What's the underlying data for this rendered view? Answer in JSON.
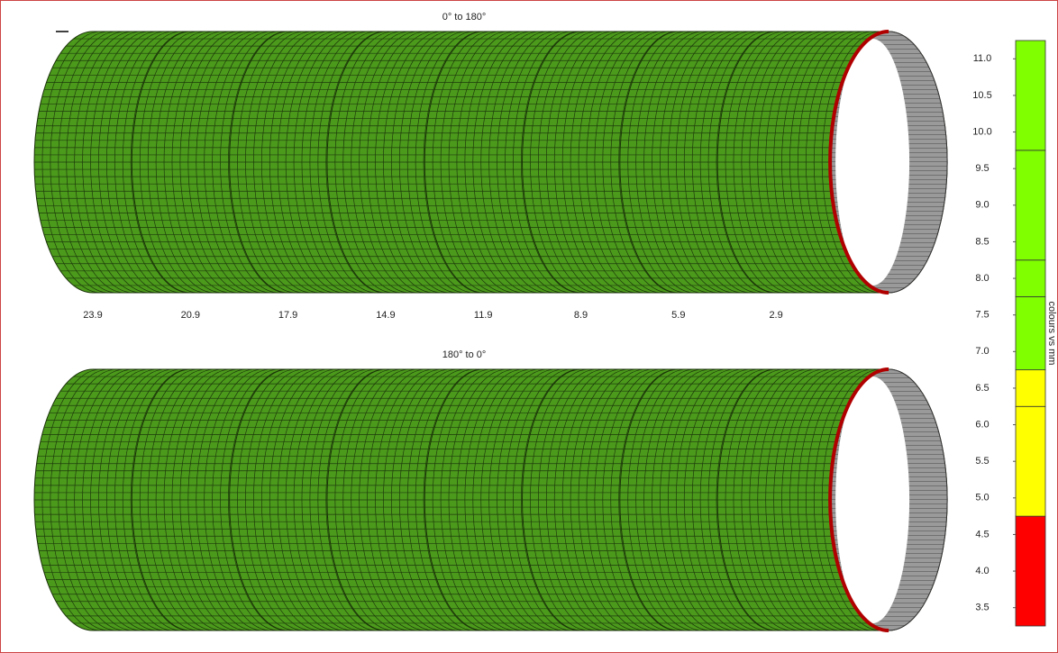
{
  "chart_data": {
    "type": "pipe-rings",
    "panels": [
      {
        "title": "0° to 180°",
        "ring_labels": [
          "23.9",
          "20.9",
          "17.9",
          "14.9",
          "11.9",
          "8.9",
          "5.9",
          "2.9"
        ]
      },
      {
        "title": "180° to 0°",
        "ring_labels": [
          null,
          null,
          null,
          null,
          null,
          null,
          null,
          null
        ]
      }
    ],
    "body_color": "#4c9a1c",
    "colorbar": {
      "label": "colours vs mm",
      "ylim": [
        3.25,
        11.25
      ],
      "yticks": [
        3.5,
        {
          "value": 4,
          "label": "4.0"
        },
        4.5,
        {
          "value": 5,
          "label": "5.0"
        },
        5.5,
        {
          "value": 6,
          "label": "6.0"
        },
        6.5,
        {
          "value": 7,
          "label": "7.0"
        },
        7.5,
        {
          "value": 8,
          "label": "8.0"
        },
        8.5,
        {
          "value": 9,
          "label": "9.0"
        },
        9.5,
        {
          "value": 10,
          "label": "10.0"
        },
        10.5,
        {
          "value": 11,
          "label": "11.0"
        }
      ],
      "bins": [
        3.25,
        4.75,
        6.25,
        6.75,
        7.75,
        8.25,
        9.75,
        11.25
      ],
      "colors": [
        "#ff0000",
        "#ffff00",
        "#ffff00",
        "#80ff00",
        "#80ff00",
        "#80ff00",
        "#80ff00"
      ]
    }
  }
}
